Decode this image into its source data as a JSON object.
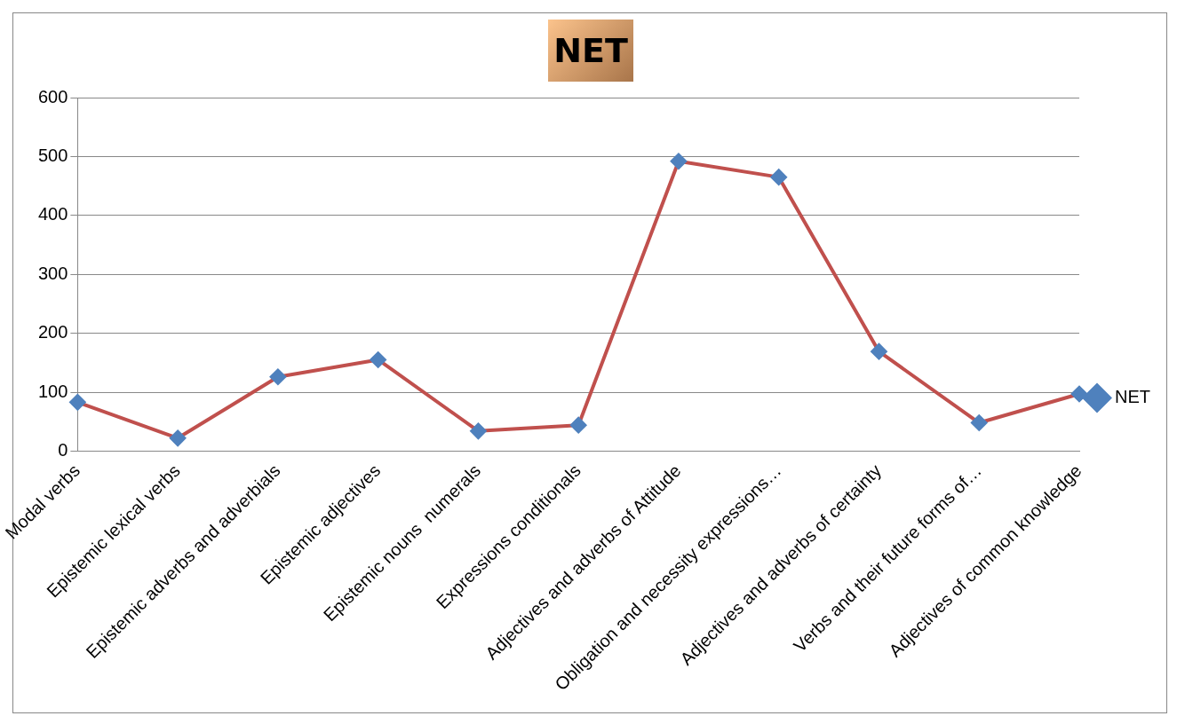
{
  "chart_data": {
    "type": "line",
    "title": "NET",
    "categories": [
      "Modal verbs",
      "Epistemic lexical verbs",
      "Epistemic adverbs and adverbials",
      "Epistemic adjectives",
      "Epistemic nouns  numerals",
      "Expressions conditionals",
      "Adjectives and adverbs of Attitude",
      "Obligation and necessity expressions…",
      "Adjectives and adverbs of certainty",
      "Verbs and their future forms of…",
      "Adjectives of common knowledge"
    ],
    "series": [
      {
        "name": "NET",
        "color": "#c0504d",
        "values": [
          83,
          22,
          126,
          155,
          34,
          44,
          492,
          465,
          169,
          48,
          97
        ]
      }
    ],
    "ylim": [
      0,
      600
    ],
    "yticks": [
      0,
      100,
      200,
      300,
      400,
      500,
      600
    ],
    "grid": "y",
    "legend": "right",
    "marker": "diamond"
  }
}
